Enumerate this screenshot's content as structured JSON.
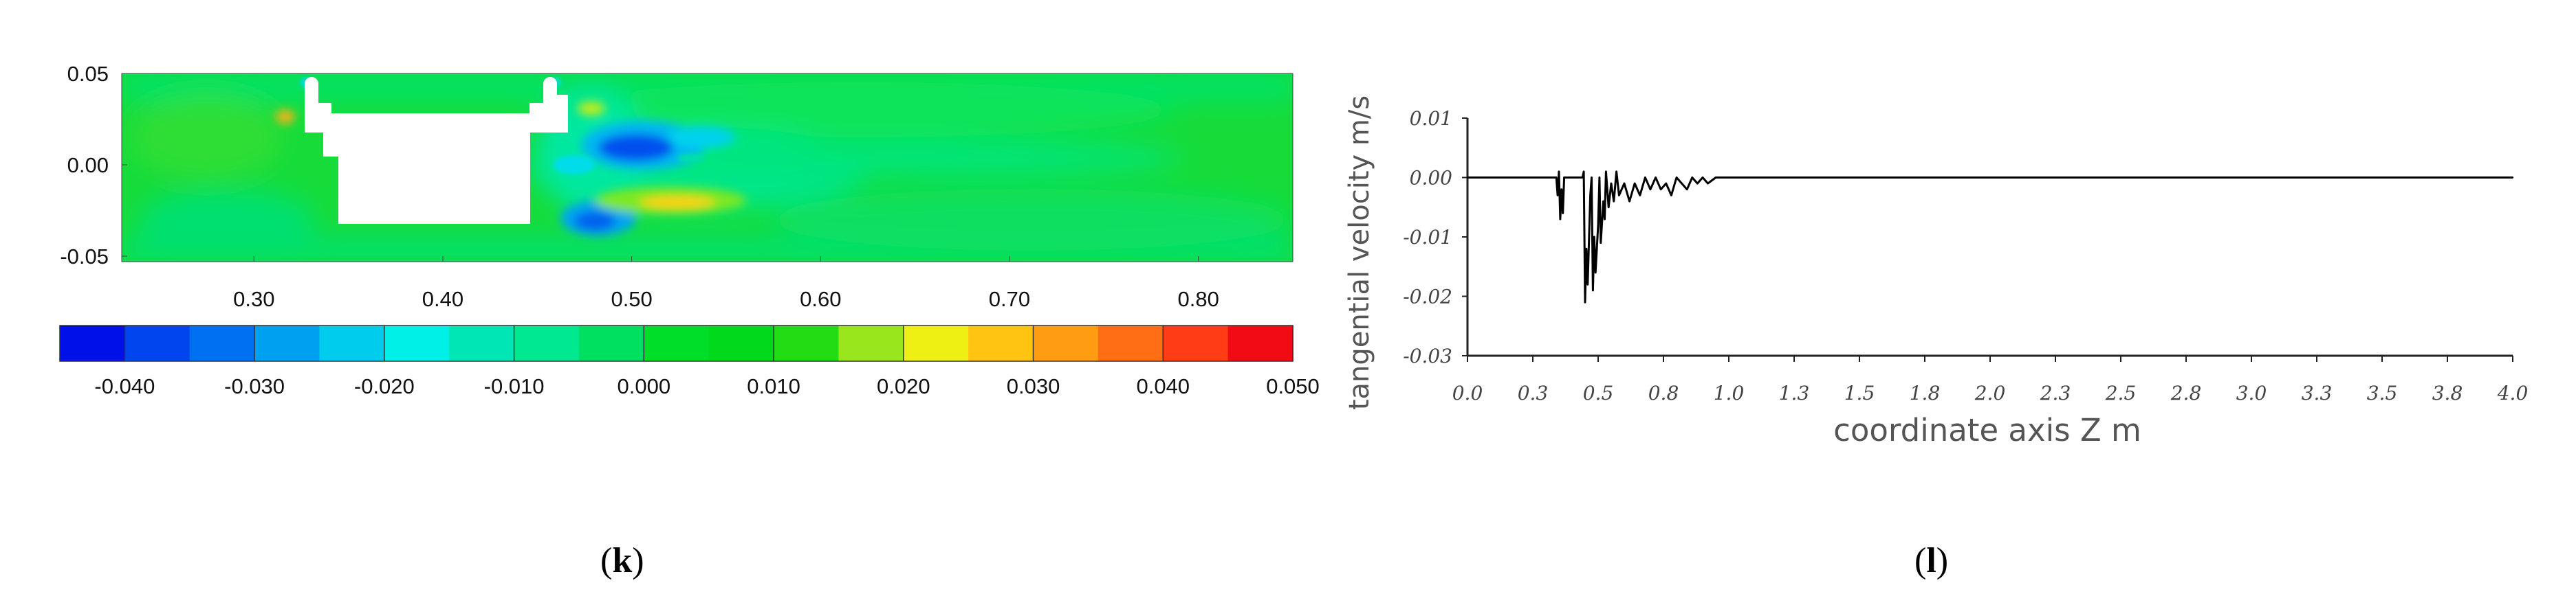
{
  "panels": {
    "k": {
      "label": "k"
    },
    "l": {
      "label": "l"
    }
  },
  "chart_data": [
    {
      "type": "heatmap",
      "title": "",
      "xlabel": "",
      "ylabel": "",
      "xlim": [
        0.23,
        0.85
      ],
      "ylim": [
        -0.053,
        0.05
      ],
      "x_ticks": [
        "0.30",
        "0.40",
        "0.50",
        "0.60",
        "0.70",
        "0.80"
      ],
      "y_ticks": [
        "0.05",
        "0.00",
        "-0.05"
      ],
      "colorbar": {
        "range": [
          -0.045,
          0.05
        ],
        "labels": [
          "-0.040",
          "-0.030",
          "-0.020",
          "-0.010",
          "0.000",
          "0.010",
          "0.020",
          "0.030",
          "0.040",
          "0.050"
        ],
        "colors": [
          "#0010e8",
          "#0045ee",
          "#0070f2",
          "#00a0f0",
          "#00ccee",
          "#00f0e8",
          "#00e6b4",
          "#00e890",
          "#00e060",
          "#00de2a",
          "#00da1a",
          "#22dc14",
          "#9ae61c",
          "#eef014",
          "#ffc412",
          "#ff9c12",
          "#ff6e14",
          "#ff3c16",
          "#f20a14"
        ]
      },
      "background_value": 0.005,
      "colors": {
        "background": "#16dc3a",
        "obstacle": "#ffffff"
      }
    },
    {
      "type": "line",
      "title": "",
      "xlabel": "coordinate axis Z m",
      "ylabel": "tangential velocity m/s",
      "xlim": [
        0,
        4.0
      ],
      "ylim": [
        -0.03,
        0.01
      ],
      "x_ticks": [
        "0.0",
        "0.3",
        "0.5",
        "0.8",
        "1.0",
        "1.3",
        "1.5",
        "1.8",
        "2.0",
        "2.3",
        "2.5",
        "2.8",
        "3.0",
        "3.3",
        "3.5",
        "3.8",
        "4.0"
      ],
      "y_ticks": [
        "0.01",
        "0.00",
        "-0.01",
        "-0.02",
        "-0.03"
      ],
      "series": [
        {
          "x": [
            0.0,
            0.34,
            0.345,
            0.35,
            0.355,
            0.36,
            0.365,
            0.37,
            0.38,
            0.42,
            0.44,
            0.445,
            0.45,
            0.455,
            0.46,
            0.47,
            0.475,
            0.48,
            0.485,
            0.49,
            0.5,
            0.505,
            0.51,
            0.52,
            0.525,
            0.53,
            0.54,
            0.55,
            0.56,
            0.57,
            0.58,
            0.6,
            0.62,
            0.64,
            0.66,
            0.68,
            0.7,
            0.72,
            0.74,
            0.76,
            0.78,
            0.8,
            0.82,
            0.84,
            0.86,
            0.88,
            0.9,
            0.92,
            0.95,
            1.0,
            1.05,
            1.1,
            1.2,
            1.4,
            2.0,
            3.0,
            4.0
          ],
          "y": [
            0.0,
            0.0,
            -0.003,
            0.001,
            -0.007,
            -0.002,
            -0.006,
            0.0,
            0.0,
            0.0,
            0.0,
            0.001,
            -0.021,
            -0.012,
            -0.018,
            -0.003,
            0.0,
            -0.019,
            -0.01,
            -0.016,
            -0.008,
            0.0,
            -0.011,
            -0.004,
            -0.007,
            0.001,
            -0.005,
            -0.001,
            -0.004,
            0.001,
            -0.003,
            -0.001,
            -0.004,
            -0.001,
            -0.003,
            0.0,
            -0.002,
            0.0,
            -0.002,
            -0.001,
            -0.003,
            0.0,
            -0.001,
            -0.002,
            0.0,
            -0.001,
            0.0,
            -0.001,
            0.0,
            0.0,
            0.0,
            0.0,
            0.0,
            0.0,
            0.0,
            0.0,
            0.0
          ]
        }
      ],
      "colors": {
        "line": "#000000"
      }
    }
  ]
}
